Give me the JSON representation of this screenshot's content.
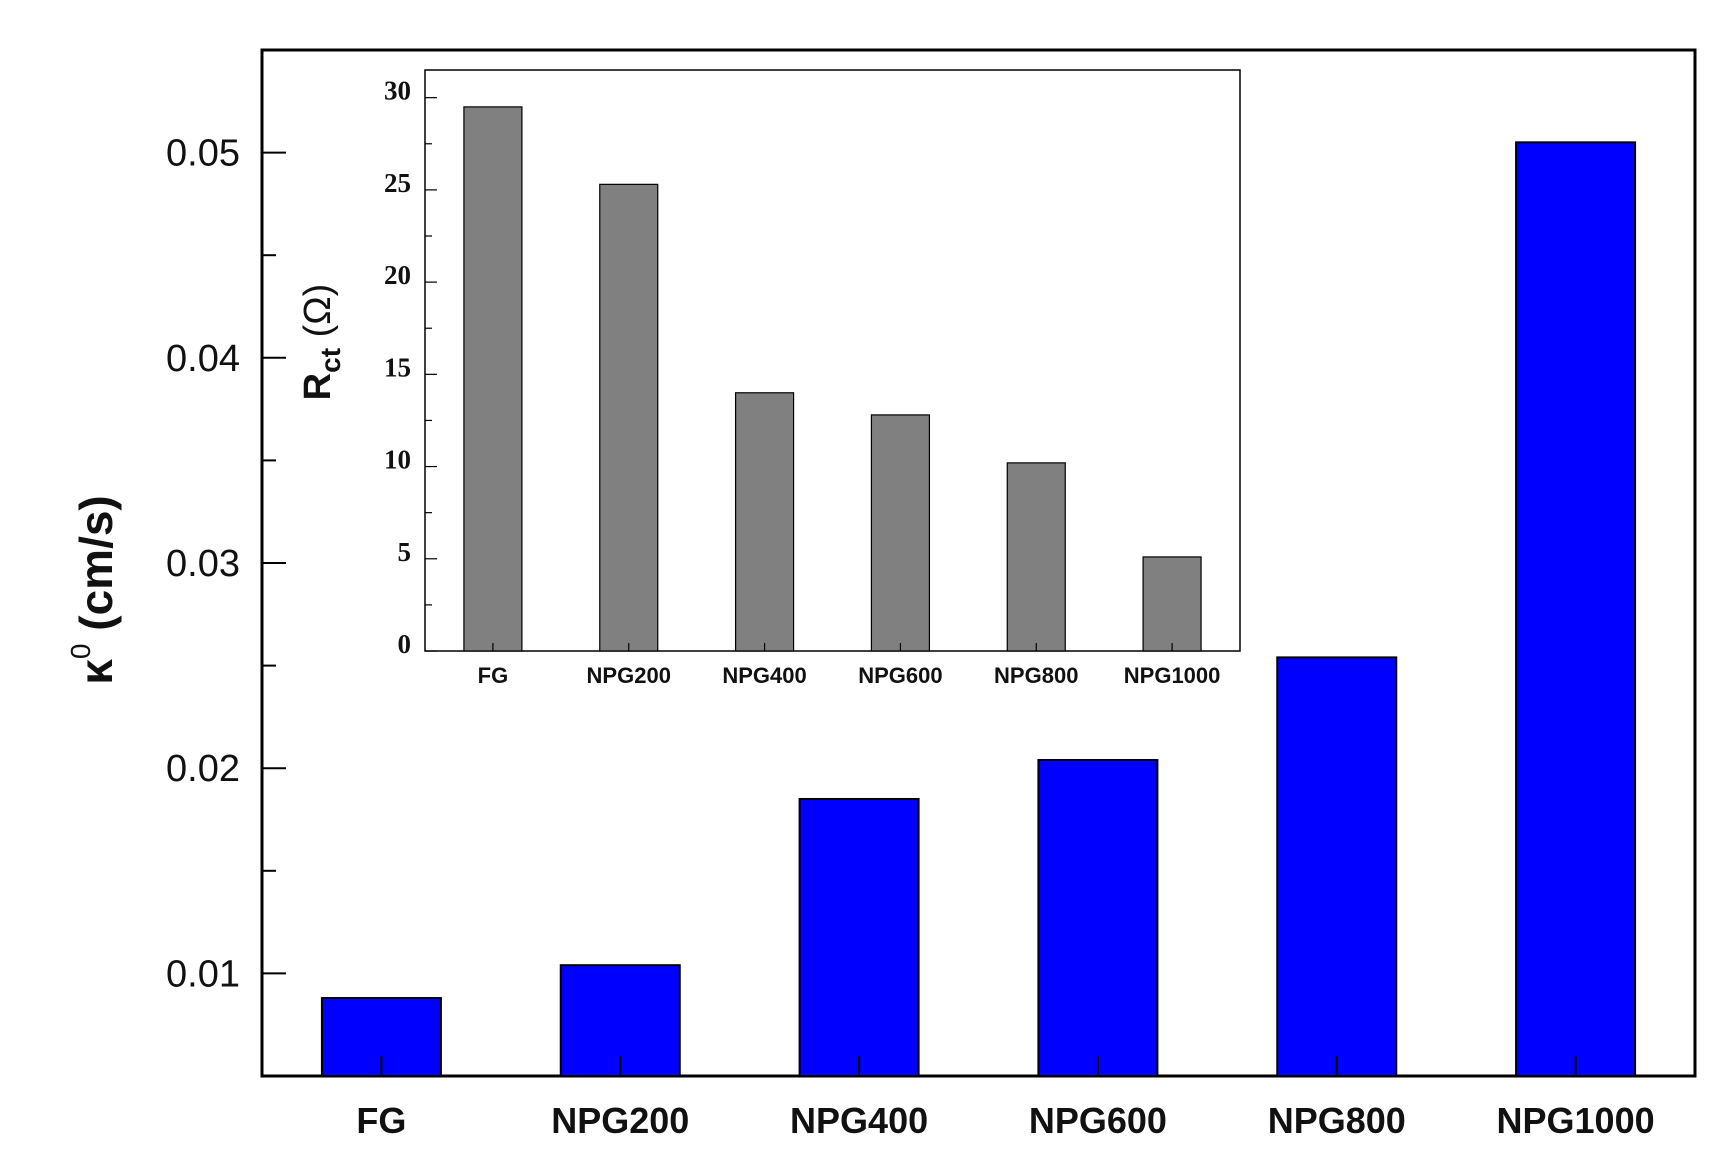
{
  "chart_data": [
    {
      "type": "bar",
      "categories": [
        "FG",
        "NPG200",
        "NPG400",
        "NPG600",
        "NPG800",
        "NPG1000"
      ],
      "values": [
        0.0088,
        0.0104,
        0.0185,
        0.0204,
        0.0254,
        0.0505
      ],
      "ylabel": {
        "symbol": "κ",
        "sup": "0",
        "unit": " (cm/s)"
      },
      "yticks": [
        "0.01",
        "0.02",
        "0.03",
        "0.04",
        "0.05"
      ],
      "ylim": [
        0.005,
        0.055
      ],
      "bar_color": "#0000ff",
      "grid": false
    },
    {
      "type": "bar",
      "inset": true,
      "categories": [
        "FG",
        "NPG200",
        "NPG400",
        "NPG600",
        "NPG800",
        "NPG1000"
      ],
      "values": [
        29.5,
        25.3,
        14.0,
        12.8,
        10.2,
        5.1
      ],
      "ylabel": {
        "symbol": "R",
        "sub": "ct",
        "unit": " (Ω)"
      },
      "yticks": [
        "0",
        "5",
        "10",
        "15",
        "20",
        "25",
        "30"
      ],
      "ylim": [
        0,
        31.5
      ],
      "bar_color": "#808080",
      "grid": false
    }
  ]
}
